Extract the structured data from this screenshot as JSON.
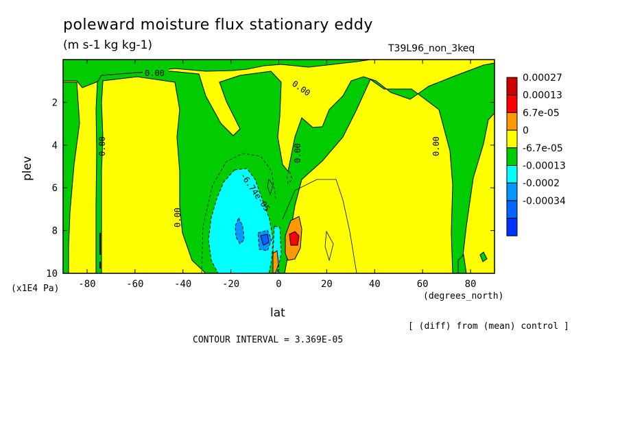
{
  "header": {
    "title": "poleward moisture flux stationary eddy",
    "units": "(m s-1 kg kg-1)",
    "experiment": "T39L96_non_3keq",
    "diff_note": "[ (diff) from (mean) control ]",
    "contour_interval": "CONTOUR INTERVAL = 3.369E-05"
  },
  "chart_data": {
    "type": "heatmap",
    "subtype": "filled-contour",
    "title": "poleward moisture flux stationary eddy",
    "units": "(m s-1 kg kg-1)",
    "xlabel": "lat",
    "x_unit_label": "(degrees_north)",
    "ylabel": "plev",
    "y_scale_label": "(x1E4 Pa)",
    "xlim": [
      -90,
      90
    ],
    "ylim": [
      10,
      0
    ],
    "y_inverted": true,
    "x_ticks": [
      -80,
      -60,
      -40,
      -20,
      0,
      20,
      40,
      60,
      80
    ],
    "x_tick_labels": [
      "-80",
      "-60",
      "-40",
      "-20",
      "0",
      "20",
      "40",
      "60",
      "80"
    ],
    "y_ticks": [
      2,
      4,
      6,
      8,
      10
    ],
    "y_tick_labels": [
      "2",
      "4",
      "6",
      "8",
      "10"
    ],
    "contour_labels": [
      "0.00",
      "0.00",
      "0.00",
      "0.00",
      "0.00",
      "0.00",
      "-6.74e-05"
    ],
    "legend": {
      "placement": "right",
      "levels": [
        {
          "label": "0.00027",
          "color": "#ff0000"
        },
        {
          "label": "0.00013",
          "color": "#ff9900"
        },
        {
          "label": "6.7e-05",
          "color": "#ffff00"
        },
        {
          "label": "0",
          "color": "#00cc00"
        },
        {
          "label": "-6.7e-05",
          "color": "#00ffff"
        },
        {
          "label": "-0.00013",
          "color": "#0099ff"
        },
        {
          "label": "-0.0002",
          "color": "#0066ff"
        },
        {
          "label": "-0.00034",
          "color": "#0033ff"
        }
      ],
      "top_color": "#cc0000"
    },
    "features": [
      {
        "sign": "negative",
        "center_lat": -18,
        "center_plev": 7.8,
        "peak": -0.0002
      },
      {
        "sign": "positive",
        "center_lat": 6,
        "center_plev": 8.3,
        "peak": 0.00027
      }
    ]
  },
  "colors": {
    "positive_band": "#ffff00",
    "near_zero_band": "#00cc00",
    "frame": "#000000"
  }
}
